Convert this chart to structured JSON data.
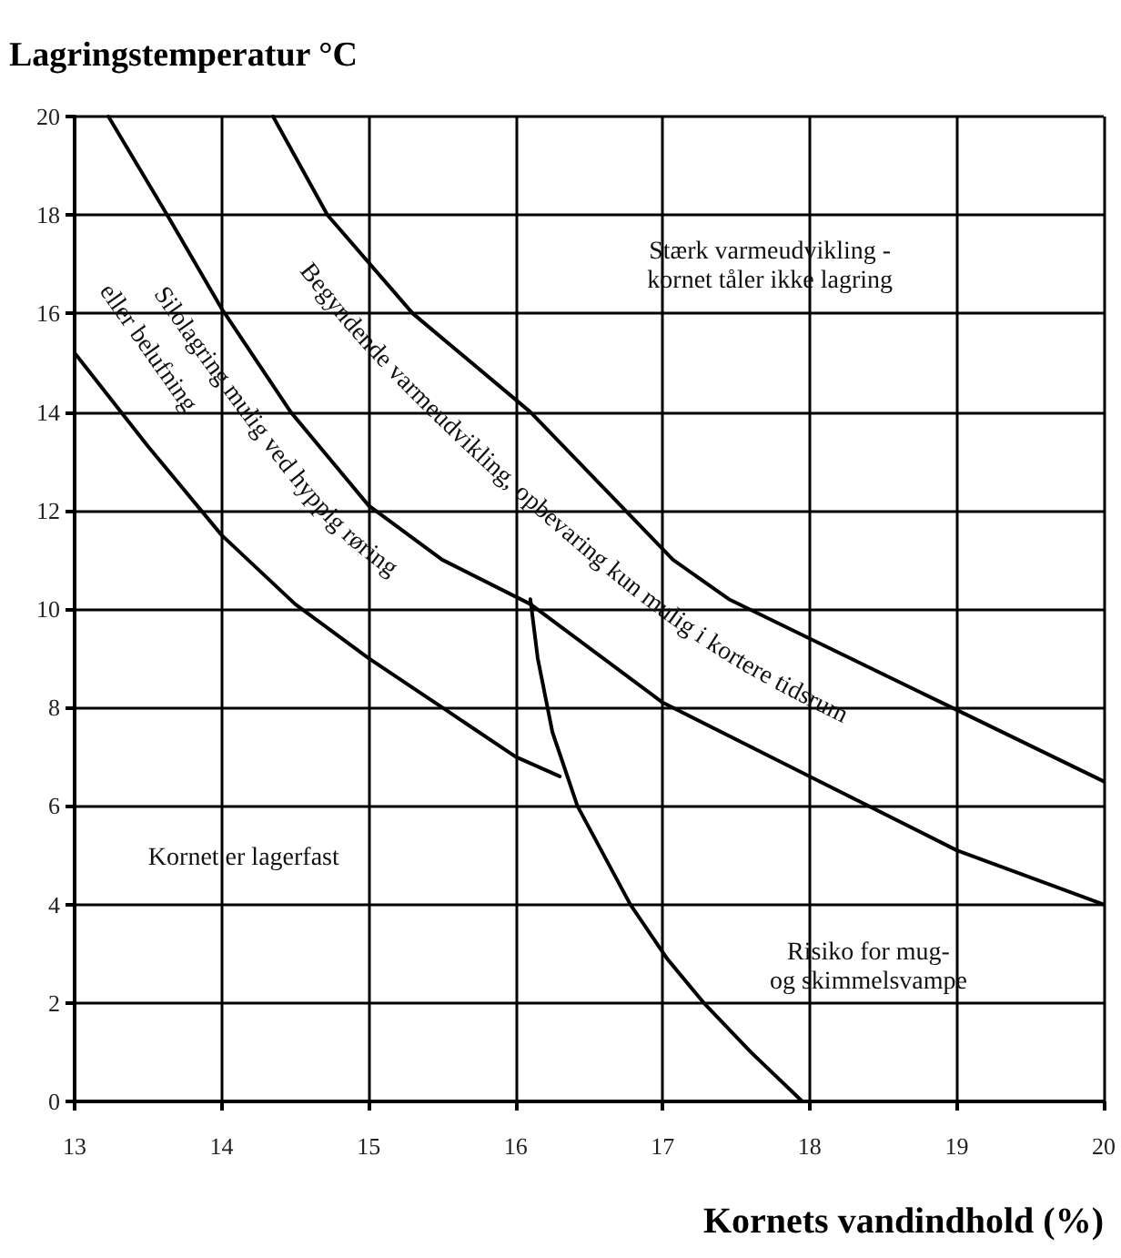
{
  "chart_data": {
    "type": "line",
    "ylabel": "Lagringstemperatur °C",
    "xlabel": "Kornets vandindhold (%)",
    "xlim": [
      13,
      20
    ],
    "xticks": [
      13,
      14,
      15,
      16,
      17,
      18,
      19,
      20
    ],
    "ylim": [
      0,
      20
    ],
    "yticks": [
      0,
      2,
      4,
      6,
      8,
      10,
      12,
      14,
      16,
      18,
      20
    ],
    "grid": true,
    "series": [
      {
        "color": "#000000",
        "x": [
          13,
          13.5,
          14,
          14.5,
          15,
          15.5,
          16,
          16.3
        ],
        "values": [
          15.2,
          13.3,
          11.5,
          10.1,
          9.0,
          8.0,
          7.0,
          6.6
        ]
      },
      {
        "color": "#000000",
        "x": [
          13.23,
          13.63,
          14,
          14.47,
          15,
          15.5,
          16.1,
          17,
          18,
          19,
          20
        ],
        "values": [
          20,
          18,
          16.1,
          14,
          12.1,
          11.0,
          10.1,
          8.1,
          6.6,
          5.1,
          4.0
        ]
      },
      {
        "color": "#000000",
        "x": [
          14.35,
          14.72,
          15.3,
          16.1,
          17.07,
          17.45,
          18,
          19,
          20
        ],
        "values": [
          20,
          18,
          16,
          14,
          11,
          10.2,
          9.4,
          7.95,
          6.5
        ]
      },
      {
        "color": "#000000",
        "x": [
          16.1,
          16.15,
          16.25,
          16.42,
          16.78,
          17.03,
          17.28,
          17.6,
          17.95
        ],
        "values": [
          10.2,
          9,
          7.5,
          6,
          4,
          2.9,
          2,
          1,
          0
        ]
      }
    ],
    "annotations": [
      "Stærk varmeudvikling -\nkornet tåler ikke lagring",
      "Begyndende varmeudvikling, opbevaring kun mulig i kortere tidsrum",
      "Silolagring mulig ved hyppig røring",
      "eller belufning",
      "Kornet er lagerfast",
      "Risiko for mug-\nog skimmelsvampe"
    ]
  }
}
